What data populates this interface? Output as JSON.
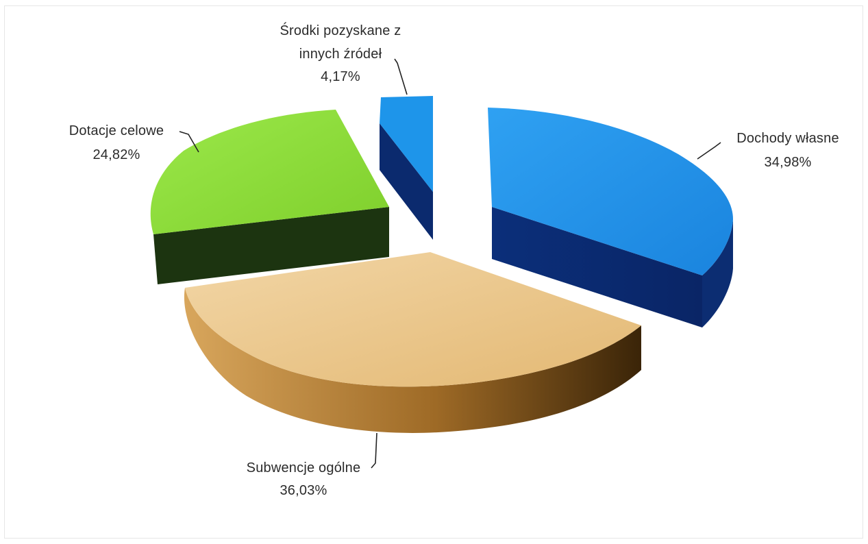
{
  "chart_data": {
    "type": "pie",
    "title": "",
    "slices": [
      {
        "label": "Dochody własne",
        "value": 34.98,
        "value_label": "34,98%",
        "color": "#1e8fe6"
      },
      {
        "label": "Subwencje ogólne",
        "value": 36.03,
        "value_label": "36,03%",
        "color": "#e6bf7a"
      },
      {
        "label": "Dotacje celowe",
        "value": 24.82,
        "value_label": "24,82%",
        "color": "#86dc32"
      },
      {
        "label": "Środki pozyskane z innych źródeł",
        "label_lines": [
          "Środki pozyskane z",
          "innych źródeł"
        ],
        "value": 4.17,
        "value_label": "4,17%",
        "color": "#1e95ea"
      }
    ],
    "exploded": true,
    "three_d": true,
    "legend": "none"
  }
}
